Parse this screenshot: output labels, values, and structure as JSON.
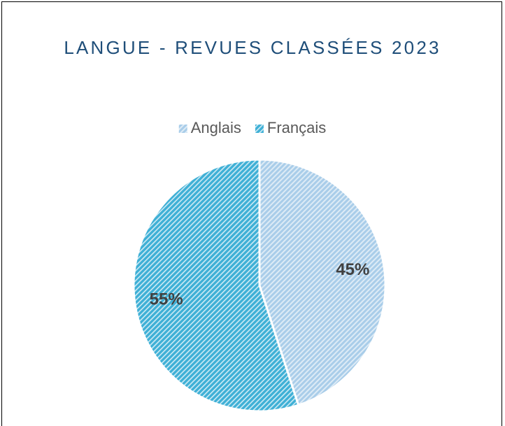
{
  "chart_data": {
    "type": "pie",
    "title": "LANGUE - REVUES CLASSÉES 2023",
    "categories": [
      "Anglais",
      "Français"
    ],
    "values": [
      45,
      55
    ],
    "value_labels": [
      "45%",
      "55%"
    ],
    "colors": [
      "#a9cde9",
      "#3fb0d6"
    ]
  }
}
